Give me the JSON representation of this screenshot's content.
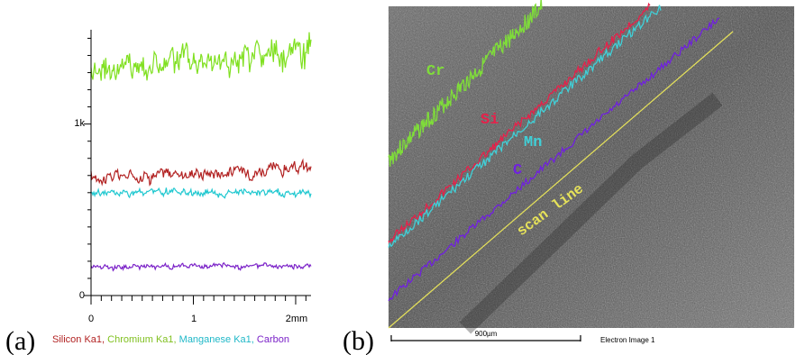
{
  "panel_a_label": "(a)",
  "panel_b_label": "(b)",
  "chart_data": {
    "type": "line",
    "x_unit_label": "mm",
    "x_ticks": [
      "0",
      "1",
      "2mm"
    ],
    "y_ticks": [
      "0",
      "1k"
    ],
    "xlim": [
      0,
      2.15
    ],
    "ylim": [
      0,
      1550
    ],
    "grid": false,
    "legend_position": "bottom",
    "series": [
      {
        "name": "Silicon Ka1",
        "color": "#b22222",
        "mean": 690,
        "amplitude": 45
      },
      {
        "name": "Chromium Ka1",
        "color": "#80e020",
        "mean": 1330,
        "amplitude": 110
      },
      {
        "name": "Manganese Ka1",
        "color": "#20c8d0",
        "mean": 600,
        "amplitude": 25
      },
      {
        "name": "Carbon",
        "color": "#7b22c8",
        "mean": 170,
        "amplitude": 18
      }
    ],
    "legend_separator": ", "
  },
  "sem_image": {
    "line_labels": [
      {
        "text": "Cr",
        "color": "#7fdc3a"
      },
      {
        "text": "Si",
        "color": "#e8204a"
      },
      {
        "text": "Mn",
        "color": "#40d0d8"
      },
      {
        "text": "C",
        "color": "#7020e0"
      },
      {
        "text": "scan line",
        "color": "#e6e25a"
      }
    ],
    "scale_bar_label": "900µm",
    "caption": "Electron Image 1"
  }
}
